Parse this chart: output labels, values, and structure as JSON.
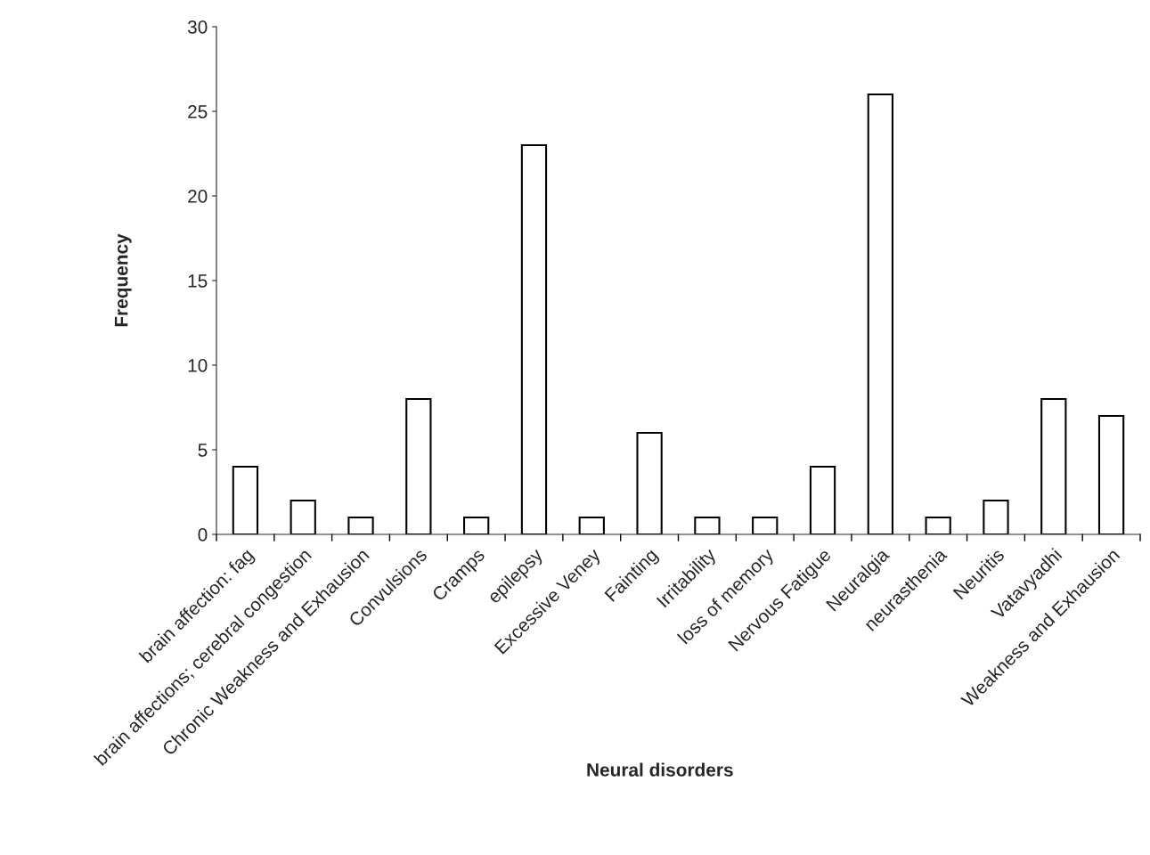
{
  "chart_data": {
    "type": "bar",
    "xlabel": "Neural disorders",
    "ylabel": "Frequency",
    "categories": [
      "brain affection: fag",
      "brain affections; cerebral congestion",
      "Chronic Weakness and Exhausion",
      "Convulsions",
      "Cramps",
      "epilepsy",
      "Excessive Veney",
      "Fainting",
      "Irritability",
      "loss of memory",
      "Nervous Fatigue",
      "Neuralgia",
      "neurasthenia",
      "Neuritis",
      "Vatavyadhi",
      "Weakness and Exhausion"
    ],
    "values": [
      4,
      2,
      1,
      8,
      1,
      23,
      1,
      6,
      1,
      1,
      4,
      26,
      1,
      2,
      8,
      7
    ],
    "color": "#ffffff",
    "ylim": [
      0,
      30
    ],
    "yticks": [
      0,
      5,
      10,
      15,
      20,
      25,
      30
    ],
    "grid": false,
    "legend": false
  }
}
